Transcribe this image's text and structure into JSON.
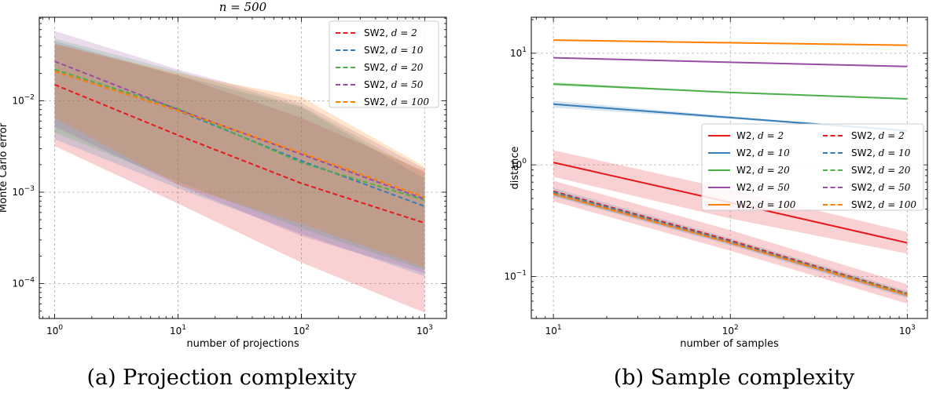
{
  "chart_data": [
    {
      "type": "line",
      "panel": "a",
      "title": "n = 500",
      "xlabel": "number of projections",
      "ylabel": "Monte Carlo error",
      "xscale": "log",
      "yscale": "log",
      "xlim": [
        0.75,
        1500
      ],
      "ylim": [
        4.15e-05,
        0.082
      ],
      "xticks": [
        {
          "value": 1,
          "base": "10",
          "exp": "0"
        },
        {
          "value": 10,
          "base": "10",
          "exp": "1"
        },
        {
          "value": 100,
          "base": "10",
          "exp": "2"
        },
        {
          "value": 1000,
          "base": "10",
          "exp": "3"
        }
      ],
      "yticks": [
        {
          "value": 0.0001,
          "base": "10",
          "exp": "−4"
        },
        {
          "value": 0.001,
          "base": "10",
          "exp": "−3"
        },
        {
          "value": 0.01,
          "base": "10",
          "exp": "−2"
        }
      ],
      "grid": true,
      "legend_position": "top-right",
      "legend_columns": 1,
      "caption": "(a)  Projection complexity",
      "x": [
        1,
        10,
        100,
        1000
      ],
      "series": [
        {
          "name": "SW2, d = 2",
          "label": "SW2,",
          "param": "d = 2",
          "color": "#e41a1c",
          "style": "dashed",
          "values": [
            0.015,
            0.0042,
            0.00125,
            0.00046
          ],
          "lower": [
            0.0032,
            0.00075,
            0.00017,
            4.8e-05
          ],
          "upper": [
            0.042,
            0.019,
            0.0065,
            0.0017
          ]
        },
        {
          "name": "SW2, d = 10",
          "label": "SW2,",
          "param": "d = 10",
          "color": "#377eb8",
          "style": "dashed",
          "values": [
            0.021,
            0.0078,
            0.0022,
            0.0007
          ],
          "lower": [
            0.0038,
            0.0011,
            0.00035,
            0.00012
          ],
          "upper": [
            0.045,
            0.019,
            0.0085,
            0.0014
          ]
        },
        {
          "name": "SW2, d = 20",
          "label": "SW2,",
          "param": "d = 20",
          "color": "#4daf4a",
          "style": "dashed",
          "values": [
            0.022,
            0.0082,
            0.0021,
            0.00082
          ],
          "lower": [
            0.0045,
            0.0013,
            0.0004,
            0.00014
          ],
          "upper": [
            0.048,
            0.021,
            0.0088,
            0.0016
          ]
        },
        {
          "name": "SW2, d = 50",
          "label": "SW2,",
          "param": "d = 50",
          "color": "#984ea3",
          "style": "dashed",
          "values": [
            0.027,
            0.008,
            0.0026,
            0.00084
          ],
          "lower": [
            0.0052,
            0.0012,
            0.00033,
            0.00013
          ],
          "upper": [
            0.058,
            0.022,
            0.0095,
            0.0018
          ]
        },
        {
          "name": "SW2, d = 100",
          "label": "SW2,",
          "param": "d = 100",
          "color": "#ff7f00",
          "style": "dashed",
          "values": [
            0.021,
            0.0078,
            0.0027,
            0.00088
          ],
          "lower": [
            0.0065,
            0.0012,
            0.00045,
            0.00015
          ],
          "upper": [
            0.042,
            0.02,
            0.011,
            0.0019
          ]
        }
      ]
    },
    {
      "type": "line",
      "panel": "b",
      "title": "",
      "xlabel": "number of samples",
      "ylabel": "distance",
      "xscale": "log",
      "yscale": "log",
      "xlim": [
        7.5,
        1300
      ],
      "ylim": [
        0.042,
        21
      ],
      "xticks": [
        {
          "value": 10,
          "base": "10",
          "exp": "1"
        },
        {
          "value": 100,
          "base": "10",
          "exp": "2"
        },
        {
          "value": 1000,
          "base": "10",
          "exp": "3"
        }
      ],
      "yticks": [
        {
          "value": 0.1,
          "base": "10",
          "exp": "−1"
        },
        {
          "value": 1,
          "base": "10",
          "exp": "0"
        },
        {
          "value": 10,
          "base": "10",
          "exp": "1"
        }
      ],
      "grid": true,
      "legend_position": "center-right",
      "legend_columns": 2,
      "caption": "(b)  Sample complexity",
      "x": [
        10,
        100,
        1000
      ],
      "series": [
        {
          "name": "W2, d = 2",
          "label": "W2,",
          "param": "d = 2",
          "color": "#e41a1c",
          "style": "solid",
          "values": [
            1.05,
            0.46,
            0.2
          ],
          "lower": [
            0.78,
            0.33,
            0.16
          ],
          "upper": [
            1.35,
            0.6,
            0.25
          ]
        },
        {
          "name": "W2, d = 10",
          "label": "W2,",
          "param": "d = 10",
          "color": "#377eb8",
          "style": "solid",
          "values": [
            3.5,
            2.65,
            2.02
          ],
          "lower": [
            3.25,
            2.58,
            1.99
          ],
          "upper": [
            3.75,
            2.72,
            2.05
          ]
        },
        {
          "name": "W2, d = 20",
          "label": "W2,",
          "param": "d = 20",
          "color": "#4daf4a",
          "style": "solid",
          "values": [
            5.3,
            4.45,
            3.9
          ],
          "lower": [
            5.1,
            4.4,
            3.87
          ],
          "upper": [
            5.5,
            4.5,
            3.93
          ]
        },
        {
          "name": "W2, d = 50",
          "label": "W2,",
          "param": "d = 50",
          "color": "#984ea3",
          "style": "solid",
          "values": [
            9.1,
            8.3,
            7.6
          ],
          "lower": [
            9.0,
            8.25,
            7.56
          ],
          "upper": [
            9.2,
            8.35,
            7.64
          ]
        },
        {
          "name": "W2, d = 100",
          "label": "W2,",
          "param": "d = 100",
          "color": "#ff7f00",
          "style": "solid",
          "values": [
            13.1,
            12.4,
            11.8
          ],
          "lower": [
            13.0,
            12.35,
            11.75
          ],
          "upper": [
            13.2,
            12.45,
            11.85
          ]
        },
        {
          "name": "SW2, d = 2",
          "label": "SW2,",
          "param": "d = 2",
          "color": "#e41a1c",
          "style": "dashed",
          "values": [
            0.58,
            0.21,
            0.07
          ],
          "lower": [
            0.47,
            0.17,
            0.057
          ],
          "upper": [
            0.72,
            0.26,
            0.085
          ]
        },
        {
          "name": "SW2, d = 10",
          "label": "SW2,",
          "param": "d = 10",
          "color": "#377eb8",
          "style": "dashed",
          "values": [
            0.57,
            0.205,
            0.069
          ],
          "lower": [
            0.52,
            0.19,
            0.064
          ],
          "upper": [
            0.62,
            0.22,
            0.074
          ]
        },
        {
          "name": "SW2, d = 20",
          "label": "SW2,",
          "param": "d = 20",
          "color": "#4daf4a",
          "style": "dashed",
          "values": [
            0.56,
            0.203,
            0.069
          ],
          "lower": [
            0.53,
            0.195,
            0.066
          ],
          "upper": [
            0.59,
            0.211,
            0.072
          ]
        },
        {
          "name": "SW2, d = 50",
          "label": "SW2,",
          "param": "d = 50",
          "color": "#984ea3",
          "style": "dashed",
          "values": [
            0.555,
            0.202,
            0.068
          ],
          "lower": [
            0.535,
            0.196,
            0.066
          ],
          "upper": [
            0.575,
            0.208,
            0.07
          ]
        },
        {
          "name": "SW2, d = 100",
          "label": "SW2,",
          "param": "d = 100",
          "color": "#ff7f00",
          "style": "dashed",
          "values": [
            0.55,
            0.2,
            0.068
          ],
          "lower": [
            0.535,
            0.196,
            0.066
          ],
          "upper": [
            0.565,
            0.205,
            0.07
          ]
        }
      ]
    }
  ]
}
